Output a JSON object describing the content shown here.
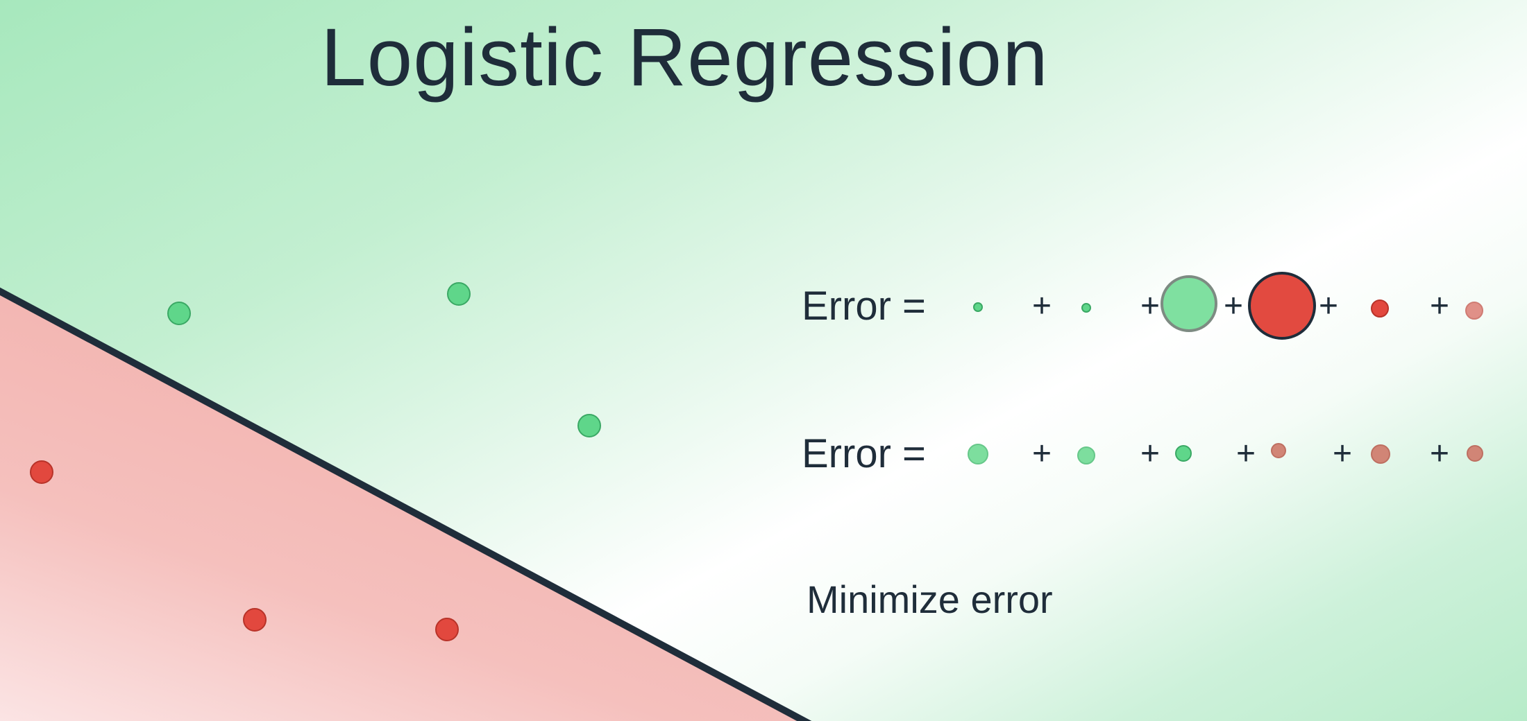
{
  "title": "Logistic Regression",
  "colors": {
    "positive_region": "#a7e8bd",
    "negative_region": "#f3b4b1",
    "boundary": "#1f2d3a",
    "positive_point": "#5fd68a",
    "negative_point": "#e2483e",
    "text": "#1f2d3a"
  },
  "diagram": {
    "boundary": "straight line separating green region (upper) from red region (lower-left)",
    "points": [
      {
        "class": "green"
      },
      {
        "class": "green"
      },
      {
        "class": "green"
      },
      {
        "class": "red"
      },
      {
        "class": "red"
      },
      {
        "class": "red"
      }
    ]
  },
  "equations": [
    {
      "label": "Error =",
      "plus": "+",
      "terms": [
        {
          "color": "green",
          "size": "small"
        },
        {
          "color": "green",
          "size": "small"
        },
        {
          "color": "green",
          "size": "large"
        },
        {
          "color": "red",
          "size": "large"
        },
        {
          "color": "red",
          "size": "small"
        },
        {
          "color": "salmon",
          "size": "small"
        }
      ]
    },
    {
      "label": "Error =",
      "plus": "+",
      "terms": [
        {
          "color": "green",
          "size": "small"
        },
        {
          "color": "green",
          "size": "small"
        },
        {
          "color": "green",
          "size": "small"
        },
        {
          "color": "rust",
          "size": "small"
        },
        {
          "color": "rust",
          "size": "small"
        },
        {
          "color": "rust",
          "size": "small"
        }
      ]
    }
  ],
  "caption": "Minimize error"
}
